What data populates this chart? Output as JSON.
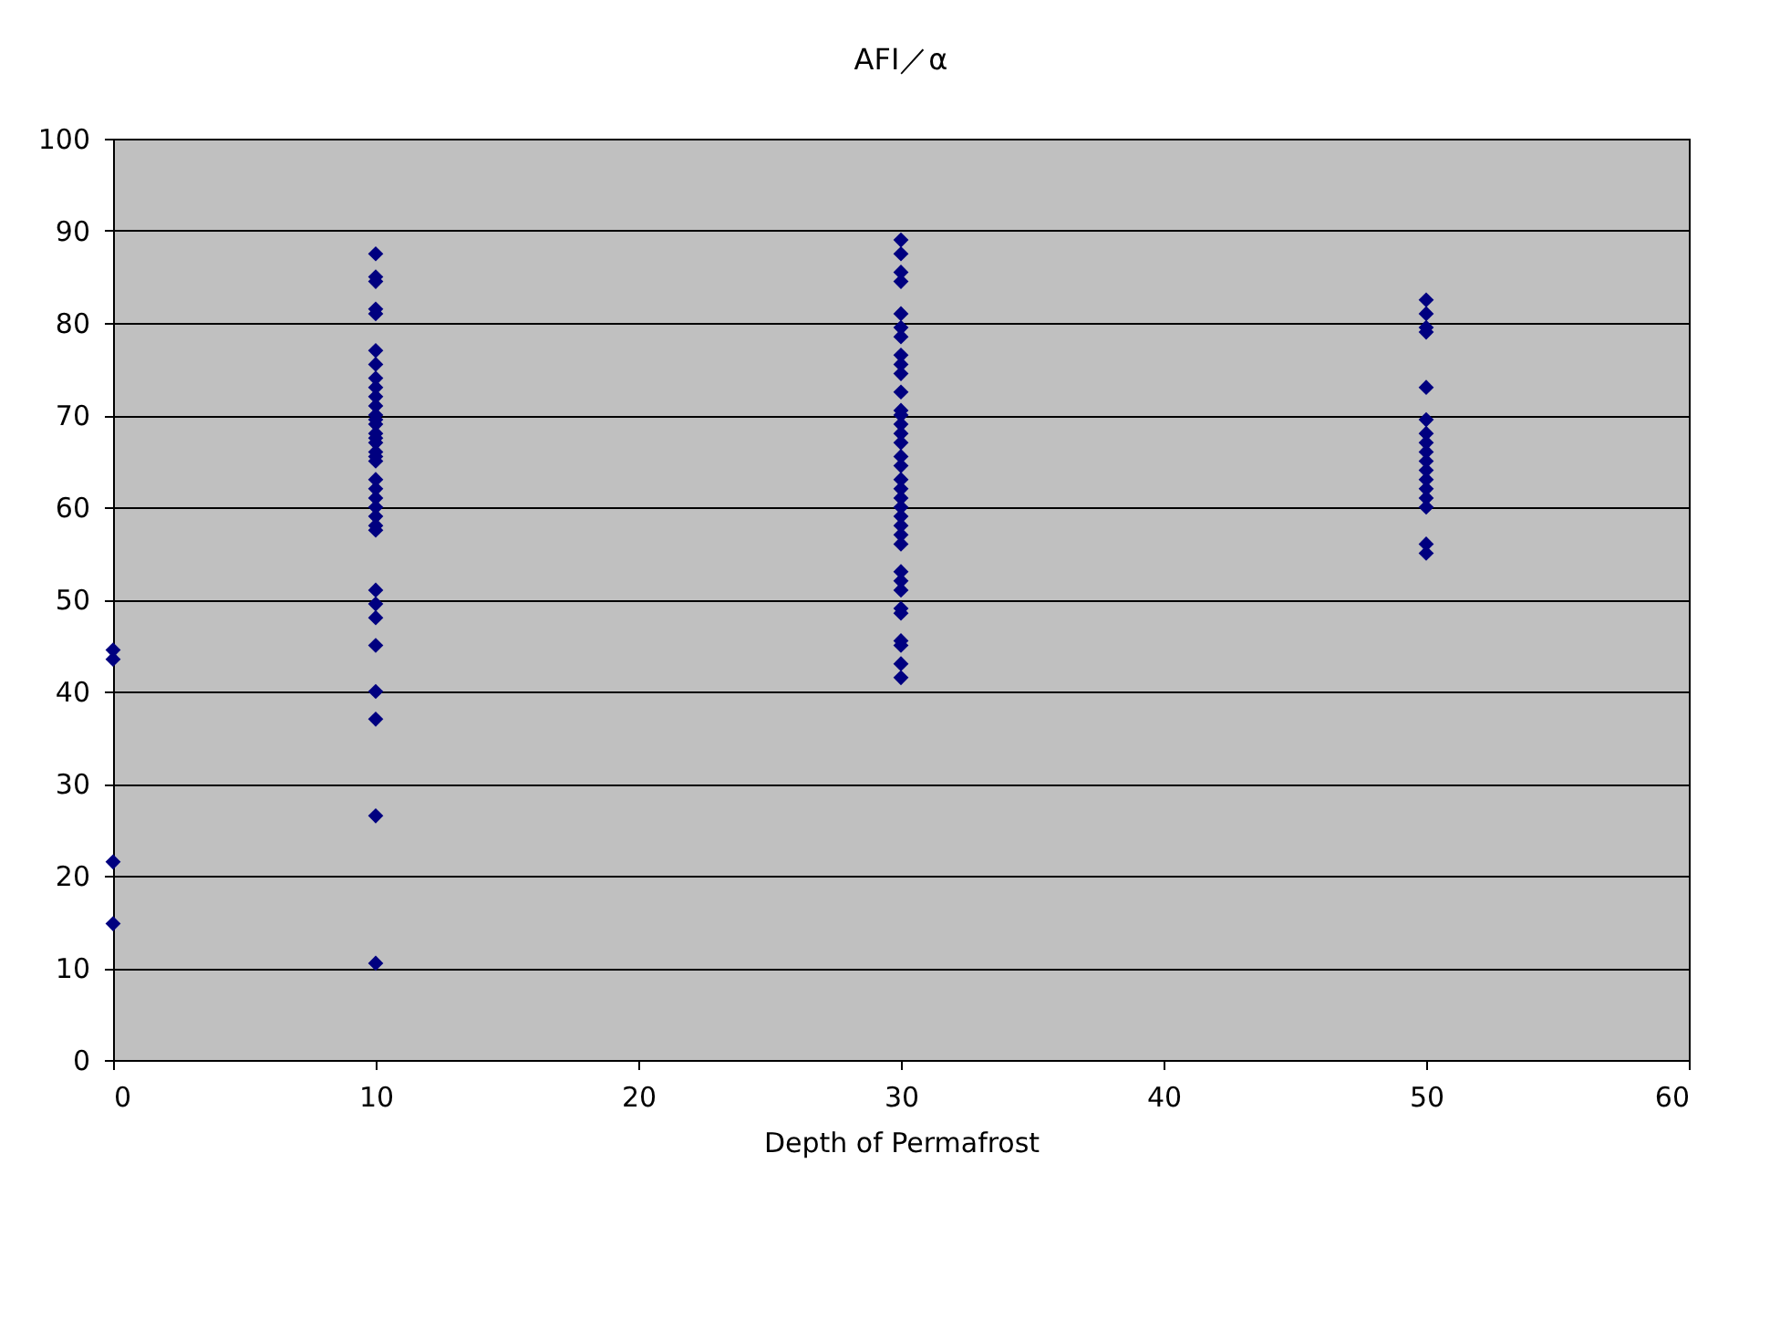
{
  "chart_data": {
    "type": "scatter",
    "title": "AFI／α",
    "xlabel": "Depth of Permafrost",
    "x": [
      0,
      0,
      0,
      0,
      10,
      10,
      10,
      10,
      10,
      10,
      10,
      10,
      10,
      10,
      10,
      10,
      10,
      10,
      10,
      10,
      10,
      10,
      10,
      10,
      10,
      10,
      10,
      10,
      10,
      10,
      10,
      10,
      10,
      10,
      10,
      10,
      10,
      10,
      10,
      30,
      30,
      30,
      30,
      30,
      30,
      30,
      30,
      30,
      30,
      30,
      30,
      30,
      30,
      30,
      30,
      30,
      30,
      30,
      30,
      30,
      30,
      30,
      30,
      30,
      30,
      30,
      30,
      30,
      30,
      30,
      30,
      30,
      30,
      30,
      50,
      50,
      50,
      50,
      50,
      50,
      50,
      50,
      50,
      50,
      50,
      50,
      50,
      50,
      50,
      50,
      50
    ],
    "series": [
      {
        "color": "#000080",
        "values": [
          44.5,
          43.5,
          21.5,
          14.8,
          87.5,
          85,
          84.5,
          81.5,
          81,
          77,
          75.5,
          74,
          73,
          72,
          71,
          70,
          69.5,
          69,
          68,
          67.5,
          67,
          66,
          65.5,
          65,
          63,
          62,
          61,
          60,
          59,
          58,
          57.5,
          51,
          49.5,
          48,
          45,
          40,
          37,
          26.5,
          10.5,
          89,
          87.5,
          85.5,
          84.5,
          81,
          79.5,
          78.5,
          76.5,
          75.5,
          74.5,
          72.5,
          70.5,
          70,
          69,
          68,
          67,
          65.5,
          64.5,
          63,
          62,
          61,
          60,
          59,
          58,
          57,
          56,
          53,
          52,
          51,
          49,
          48.5,
          45.5,
          45,
          43,
          41.5,
          82.5,
          81,
          79.5,
          79,
          73,
          69.5,
          68,
          67,
          66,
          65,
          64,
          63,
          62,
          61,
          60,
          56,
          55
        ]
      }
    ],
    "xlim": [
      0,
      60
    ],
    "xticks": [
      0,
      10,
      20,
      30,
      40,
      50,
      60
    ],
    "ylim": [
      0,
      100
    ],
    "yticks": [
      0,
      10,
      20,
      30,
      40,
      50,
      60,
      70,
      80,
      90,
      100
    ],
    "grid": "y",
    "marker": "diamond"
  }
}
